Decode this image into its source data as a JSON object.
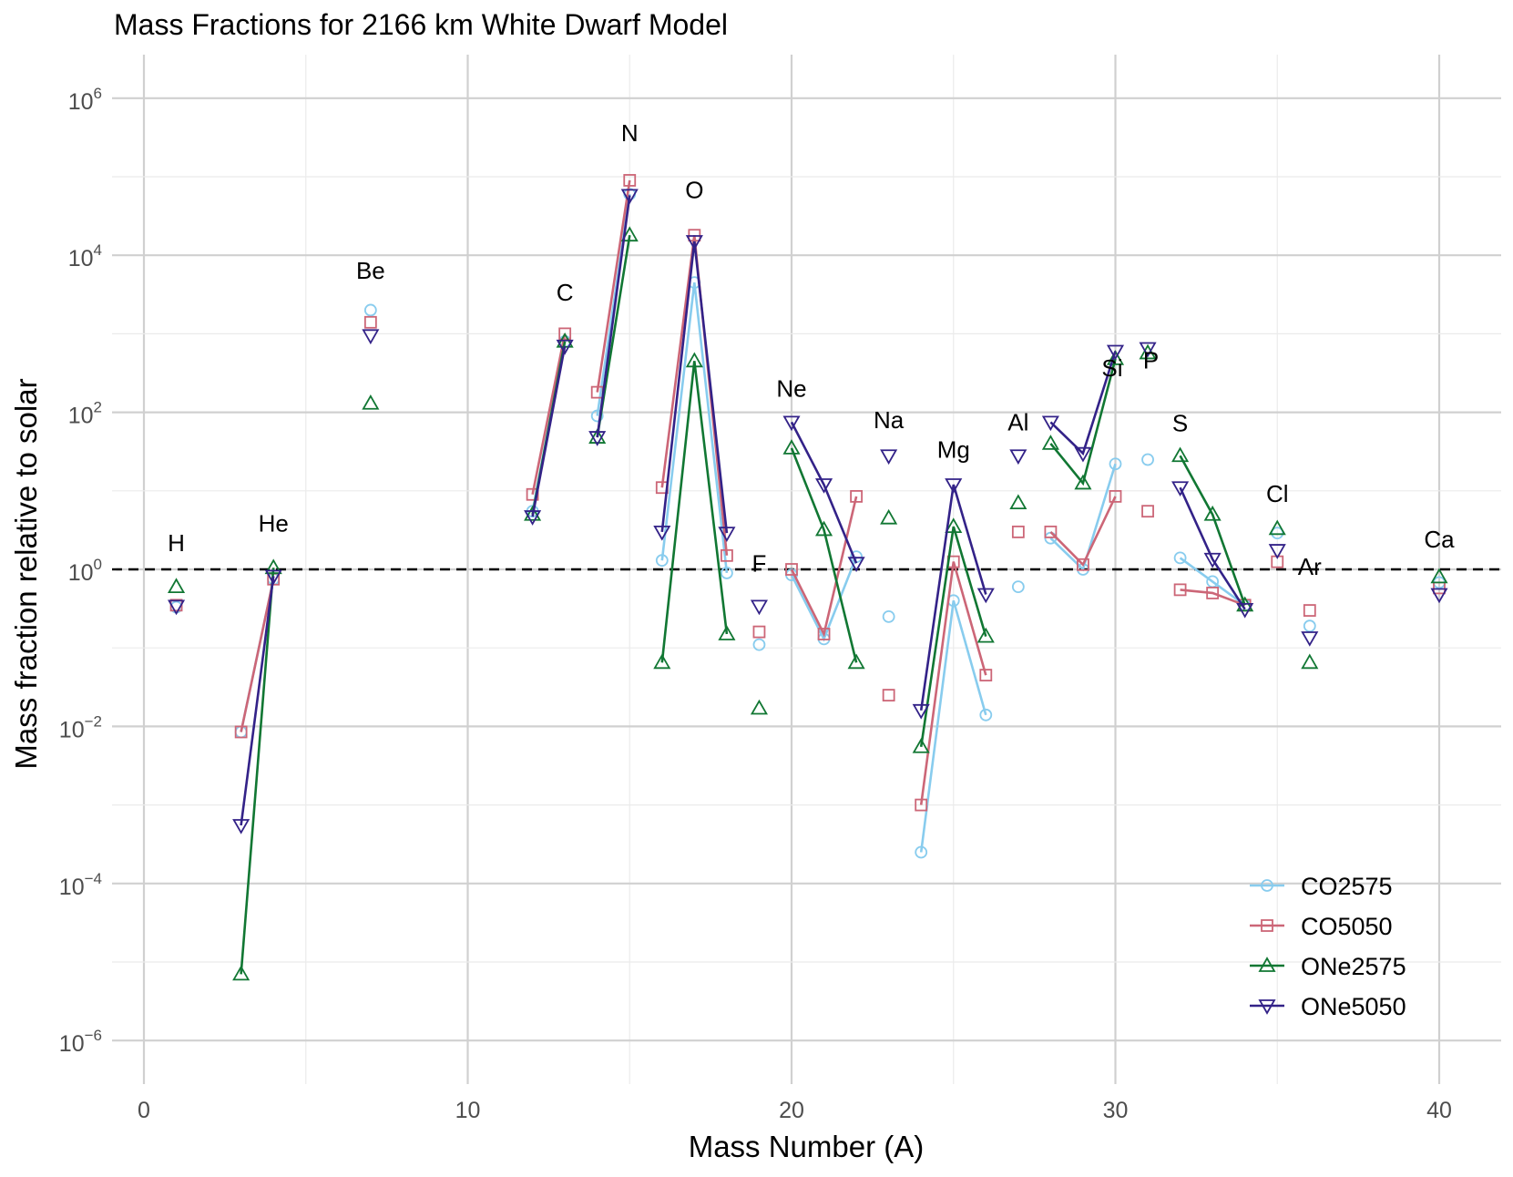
{
  "chart_data": {
    "type": "line",
    "title": "Mass Fractions for 2166 km White Dwarf Model",
    "xlabel": "Mass Number (A)",
    "ylabel": "Mass fraction relative to solar",
    "yscale": "log",
    "xlim": [
      -1,
      42
    ],
    "ylim_log10": [
      -6.6,
      6.6
    ],
    "x_ticks": [
      0,
      10,
      20,
      30,
      40
    ],
    "y_ticks": [
      {
        "base": "10",
        "exp": "6",
        "value": 6
      },
      {
        "base": "10",
        "exp": "4",
        "value": 4
      },
      {
        "base": "10",
        "exp": "2",
        "value": 2
      },
      {
        "base": "10",
        "exp": "0",
        "value": 0
      },
      {
        "base": "10",
        "exp": "−2",
        "value": -2
      },
      {
        "base": "10",
        "exp": "−4",
        "value": -4
      },
      {
        "base": "10",
        "exp": "−6",
        "value": -6
      }
    ],
    "reference_line": {
      "y": 1,
      "style": "dashed"
    },
    "grid": true,
    "legend_position": "bottom-right",
    "element_labels": [
      {
        "text": "H",
        "x": 1,
        "y_log10": 0.23
      },
      {
        "text": "He",
        "x": 4,
        "y_log10": 0.48
      },
      {
        "text": "Be",
        "x": 7,
        "y_log10": 3.7
      },
      {
        "text": "C",
        "x": 13,
        "y_log10": 3.42
      },
      {
        "text": "N",
        "x": 15,
        "y_log10": 5.45
      },
      {
        "text": "O",
        "x": 17,
        "y_log10": 4.73
      },
      {
        "text": "F",
        "x": 19,
        "y_log10": -0.03
      },
      {
        "text": "Ne",
        "x": 20,
        "y_log10": 2.2
      },
      {
        "text": "Na",
        "x": 23,
        "y_log10": 1.8
      },
      {
        "text": "Mg",
        "x": 25,
        "y_log10": 1.42
      },
      {
        "text": "Al",
        "x": 27,
        "y_log10": 1.77
      },
      {
        "text": "Si",
        "x": 29.9,
        "y_log10": 2.46
      },
      {
        "text": "P",
        "x": 31.1,
        "y_log10": 2.56
      },
      {
        "text": "S",
        "x": 32,
        "y_log10": 1.76
      },
      {
        "text": "Cl",
        "x": 35,
        "y_log10": 0.86
      },
      {
        "text": "Ar",
        "x": 36,
        "y_log10": -0.07
      },
      {
        "text": "Ca",
        "x": 40,
        "y_log10": 0.28
      }
    ],
    "series": [
      {
        "name": "CO2575",
        "color": "#88ccee",
        "marker": "circle",
        "groups": [
          [
            [
              1,
              0.33
            ]
          ],
          [
            [
              3,
              0.0085
            ],
            [
              4,
              0.75
            ]
          ],
          [
            [
              7,
              2000
            ]
          ],
          [
            [
              12,
              5.5
            ],
            [
              13,
              800
            ]
          ],
          [
            [
              14,
              90
            ],
            [
              15,
              60000
            ]
          ],
          [
            [
              16,
              1.3
            ],
            [
              17,
              4500
            ],
            [
              18,
              0.9
            ]
          ],
          [
            [
              19,
              0.11
            ]
          ],
          [
            [
              20,
              0.85
            ],
            [
              21,
              0.13
            ],
            [
              22,
              1.45
            ]
          ],
          [
            [
              23,
              0.25
            ]
          ],
          [
            [
              24,
              0.00025
            ],
            [
              25,
              0.4
            ],
            [
              26,
              0.014
            ]
          ],
          [
            [
              27,
              0.6
            ]
          ],
          [
            [
              28,
              2.5
            ],
            [
              29,
              1.0
            ],
            [
              30,
              22
            ]
          ],
          [
            [
              31,
              25
            ]
          ],
          [
            [
              32,
              1.4
            ],
            [
              33,
              0.7
            ],
            [
              34,
              0.35
            ]
          ],
          [
            [
              35,
              2.9
            ]
          ],
          [
            [
              36,
              0.19
            ]
          ],
          [
            [
              40,
              0.68
            ]
          ]
        ]
      },
      {
        "name": "CO5050",
        "color": "#cc6677",
        "marker": "square",
        "groups": [
          [
            [
              1,
              0.35
            ]
          ],
          [
            [
              3,
              0.0085
            ],
            [
              4,
              0.75
            ]
          ],
          [
            [
              7,
              1400
            ]
          ],
          [
            [
              12,
              9
            ],
            [
              13,
              1000
            ]
          ],
          [
            [
              14,
              180
            ],
            [
              15,
              90000
            ]
          ],
          [
            [
              16,
              11
            ],
            [
              17,
              18000
            ],
            [
              18,
              1.5
            ]
          ],
          [
            [
              19,
              0.16
            ]
          ],
          [
            [
              20,
              1.0
            ],
            [
              21,
              0.15
            ],
            [
              22,
              8.5
            ]
          ],
          [
            [
              23,
              0.025
            ]
          ],
          [
            [
              24,
              0.001
            ],
            [
              25,
              1.25
            ],
            [
              26,
              0.045
            ]
          ],
          [
            [
              27,
              3.0
            ]
          ],
          [
            [
              28,
              3.0
            ],
            [
              29,
              1.15
            ],
            [
              30,
              8.5
            ]
          ],
          [
            [
              31,
              5.5
            ]
          ],
          [
            [
              32,
              0.55
            ],
            [
              33,
              0.5
            ],
            [
              34,
              0.35
            ]
          ],
          [
            [
              35,
              1.25
            ]
          ],
          [
            [
              36,
              0.3
            ]
          ],
          [
            [
              40,
              0.58
            ]
          ]
        ]
      },
      {
        "name": "ONe2575",
        "color": "#117733",
        "marker": "triangle-up",
        "groups": [
          [
            [
              1,
              0.6
            ]
          ],
          [
            [
              3,
              7e-06
            ],
            [
              4,
              1.05
            ]
          ],
          [
            [
              7,
              130
            ]
          ],
          [
            [
              12,
              5.0
            ],
            [
              13,
              800
            ]
          ],
          [
            [
              14,
              48
            ],
            [
              15,
              18000
            ]
          ],
          [
            [
              16,
              0.065
            ],
            [
              17,
              450
            ],
            [
              18,
              0.15
            ]
          ],
          [
            [
              19,
              0.017
            ]
          ],
          [
            [
              20,
              35
            ],
            [
              21,
              3.2
            ],
            [
              22,
              0.065
            ]
          ],
          [
            [
              23,
              4.5
            ]
          ],
          [
            [
              24,
              0.0055
            ],
            [
              25,
              3.5
            ],
            [
              26,
              0.14
            ]
          ],
          [
            [
              27,
              7
            ]
          ],
          [
            [
              28,
              40
            ],
            [
              29,
              12.5
            ],
            [
              30,
              480
            ]
          ],
          [
            [
              31,
              570
            ]
          ],
          [
            [
              32,
              28
            ],
            [
              33,
              5.0
            ],
            [
              34,
              0.35
            ]
          ],
          [
            [
              35,
              3.3
            ]
          ],
          [
            [
              36,
              0.065
            ]
          ],
          [
            [
              40,
              0.8
            ]
          ]
        ]
      },
      {
        "name": "ONe5050",
        "color": "#332288",
        "marker": "triangle-down",
        "groups": [
          [
            [
              1,
              0.34
            ]
          ],
          [
            [
              3,
              0.00055
            ],
            [
              4,
              0.82
            ]
          ],
          [
            [
              7,
              950
            ]
          ],
          [
            [
              12,
              4.7
            ],
            [
              13,
              700
            ]
          ],
          [
            [
              14,
              48
            ],
            [
              15,
              58000
            ]
          ],
          [
            [
              16,
              3.0
            ],
            [
              17,
              15000
            ],
            [
              18,
              2.9
            ]
          ],
          [
            [
              19,
              0.34
            ]
          ],
          [
            [
              20,
              75
            ],
            [
              21,
              12
            ],
            [
              22,
              1.2
            ]
          ],
          [
            [
              23,
              28
            ]
          ],
          [
            [
              24,
              0.016
            ],
            [
              25,
              12
            ],
            [
              26,
              0.48
            ]
          ],
          [
            [
              27,
              28
            ]
          ],
          [
            [
              28,
              75
            ],
            [
              29,
              30
            ],
            [
              30,
              600
            ]
          ],
          [
            [
              31,
              650
            ]
          ],
          [
            [
              32,
              11
            ],
            [
              33,
              1.35
            ],
            [
              34,
              0.31
            ]
          ],
          [
            [
              35,
              1.75
            ]
          ],
          [
            [
              36,
              0.135
            ]
          ],
          [
            [
              40,
              0.48
            ]
          ]
        ]
      }
    ]
  }
}
